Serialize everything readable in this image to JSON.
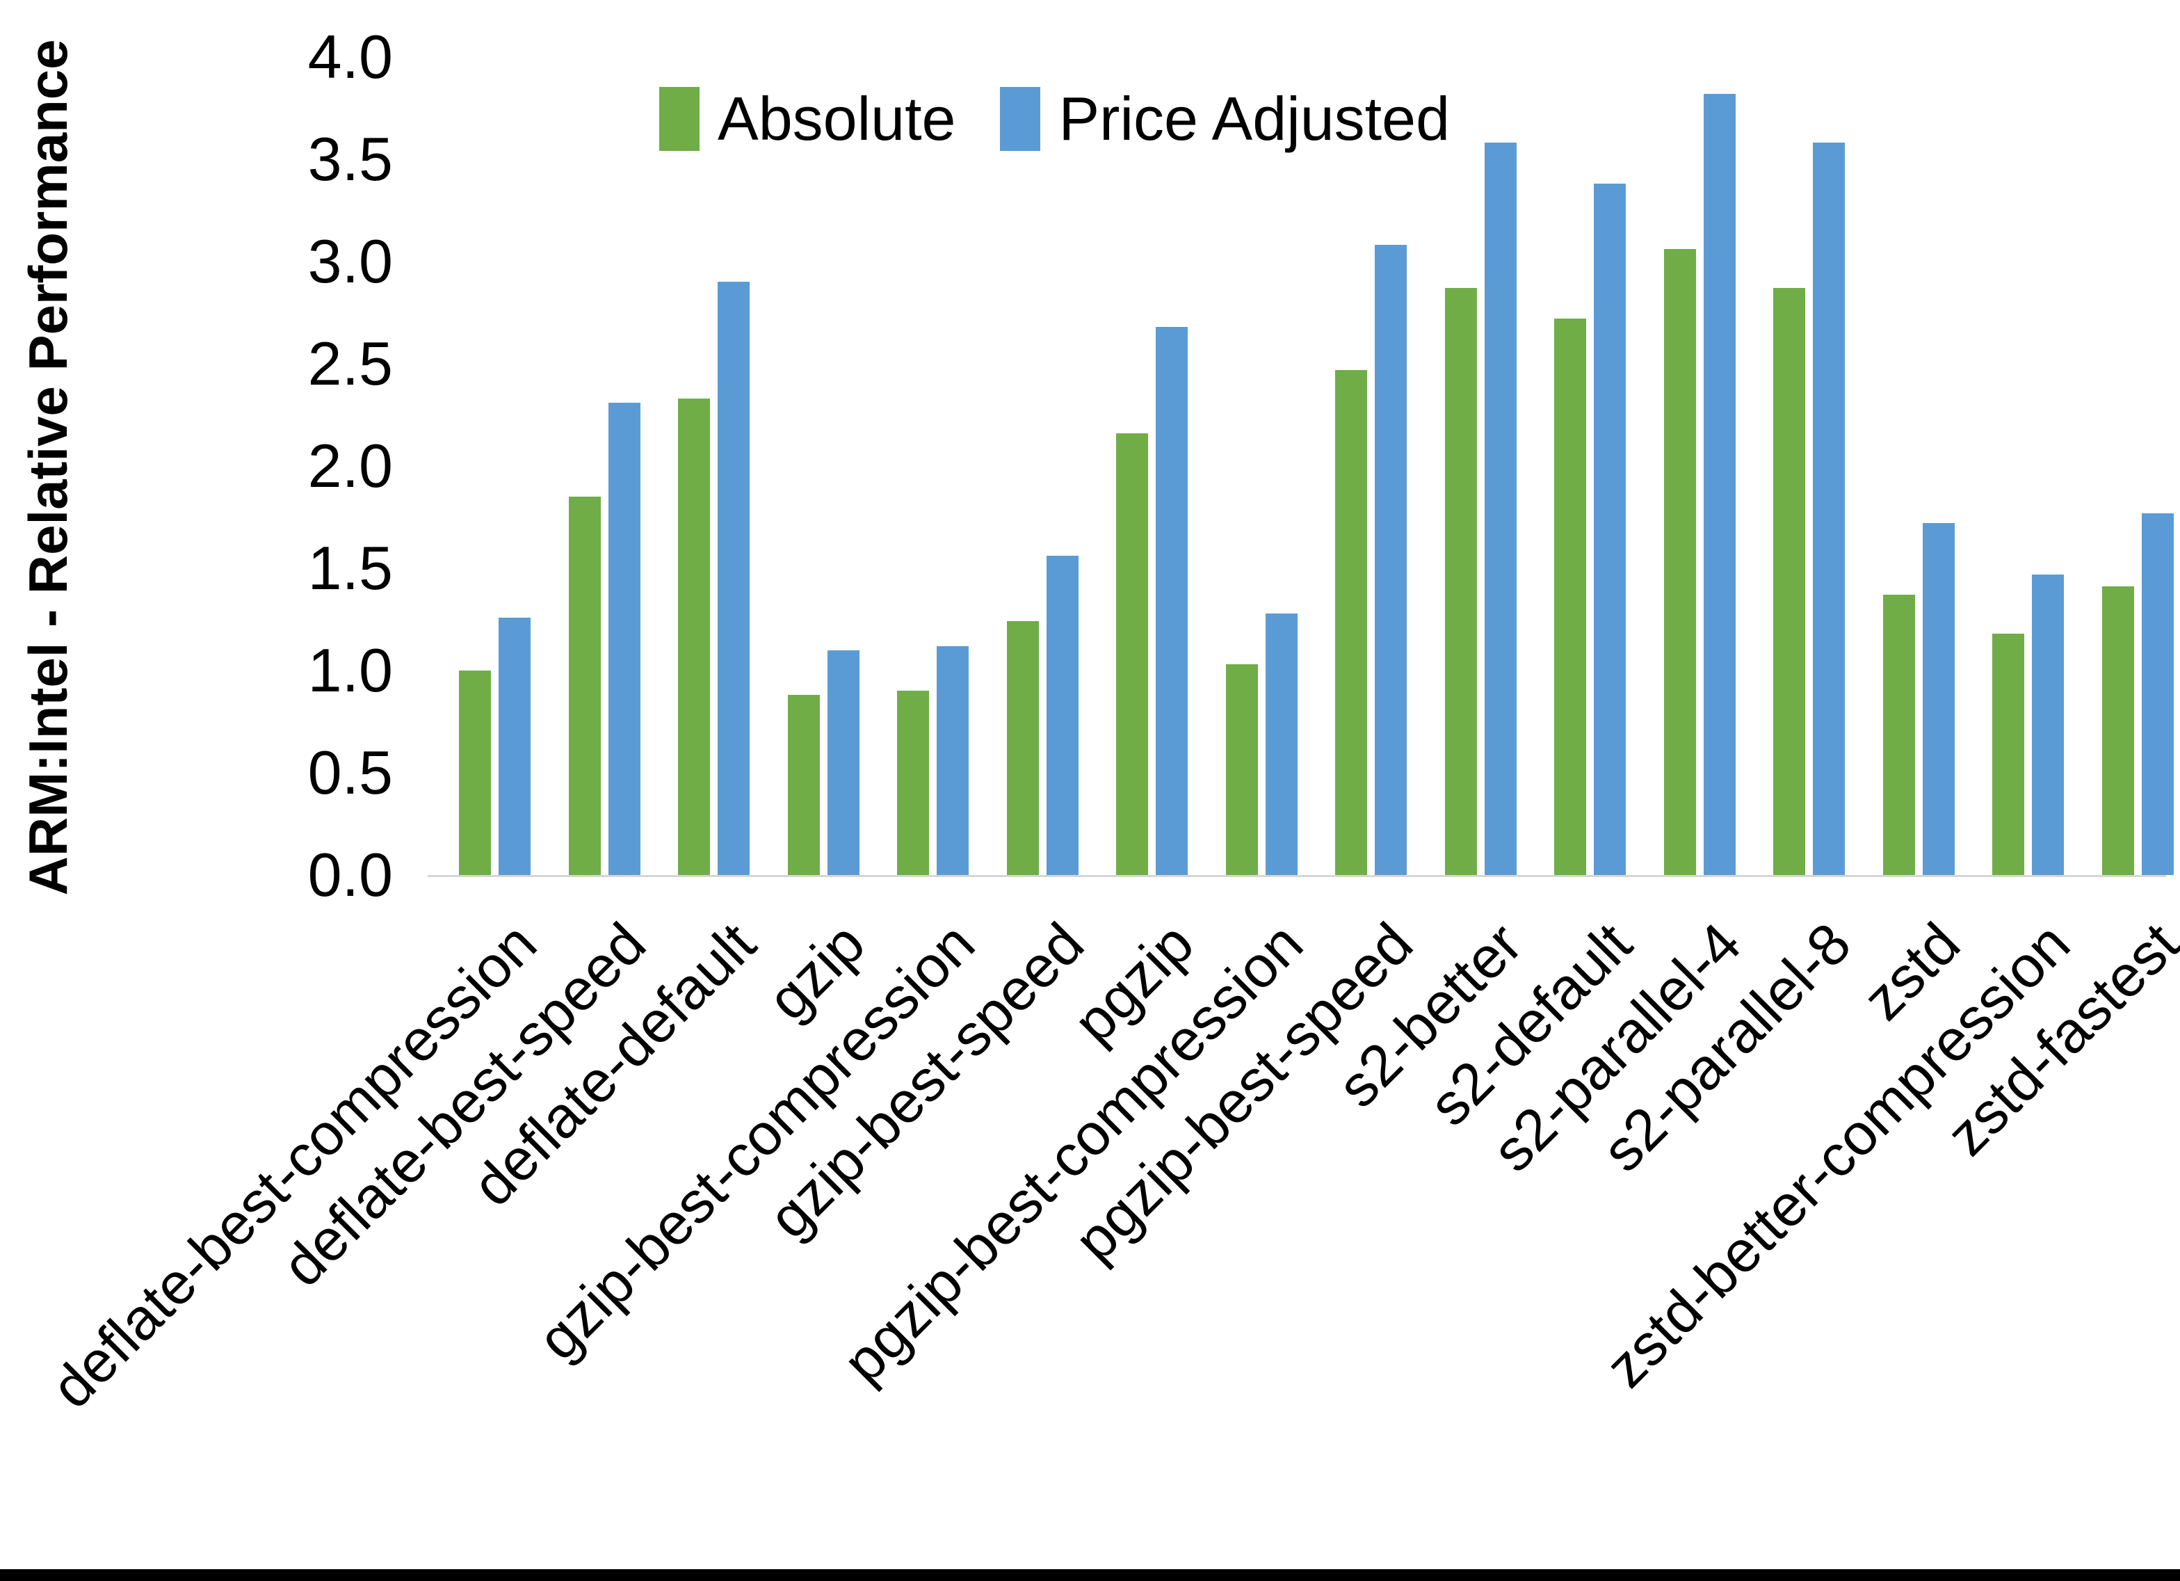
{
  "chart_data": {
    "type": "bar",
    "title": "",
    "xlabel": "",
    "ylabel": "ARM:Intel - Relative Performance",
    "ylim": [
      0,
      4
    ],
    "ytick_labels": [
      "0.0",
      "0.5",
      "1.0",
      "1.5",
      "2.0",
      "2.5",
      "3.0",
      "3.5",
      "4.0"
    ],
    "grid": false,
    "legend_position": "top-center",
    "categories": [
      "deflate-best-compression",
      "deflate-best-speed",
      "deflate-default",
      "gzip",
      "gzip-best-compression",
      "gzip-best-speed",
      "pgzip",
      "pgzip-best-compression",
      "pgzip-best-speed",
      "s2-better",
      "s2-default",
      "s2-parallel-4",
      "s2-parallel-8",
      "zstd",
      "zstd-better-compression",
      "zstd-fastest"
    ],
    "series": [
      {
        "name": "Absolute",
        "color": "#70AD47",
        "values": [
          1.0,
          1.85,
          2.33,
          0.88,
          0.9,
          1.24,
          2.16,
          1.03,
          2.47,
          2.87,
          2.72,
          3.06,
          2.87,
          1.37,
          1.18,
          1.41
        ]
      },
      {
        "name": "Price Adjusted",
        "color": "#5B9BD5",
        "values": [
          1.26,
          2.31,
          2.9,
          1.1,
          1.12,
          1.56,
          2.68,
          1.28,
          3.08,
          3.58,
          3.38,
          3.82,
          3.58,
          1.72,
          1.47,
          1.77
        ]
      }
    ]
  }
}
